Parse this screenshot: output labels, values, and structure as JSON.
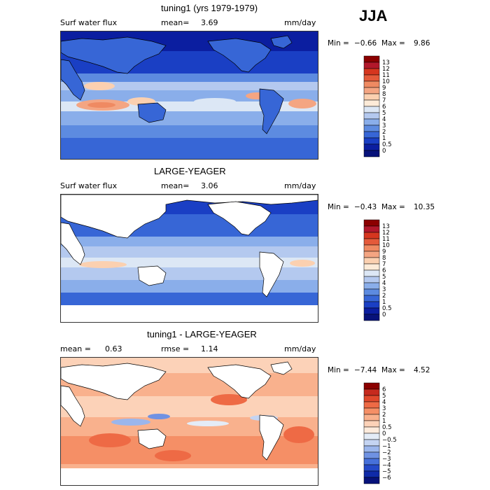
{
  "season": "JJA",
  "panels": [
    {
      "title": "tuning1 (yrs 1979-1979)",
      "left_label": "Surf water flux",
      "stat_label": "mean=",
      "stat_value": "3.69",
      "second_label": "",
      "second_value": "",
      "units": "mm/day",
      "min_label": "Min =",
      "min_value": "−0.66",
      "max_label": "Max =",
      "max_value": "9.86",
      "land_masked": false
    },
    {
      "title": "LARGE-YEAGER",
      "left_label": "Surf water flux",
      "stat_label": "mean=",
      "stat_value": "3.06",
      "second_label": "",
      "second_value": "",
      "units": "mm/day",
      "min_label": "Min =",
      "min_value": "−0.43",
      "max_label": "Max =",
      "max_value": "10.35",
      "land_masked": true
    },
    {
      "title": "tuning1 - LARGE-YEAGER",
      "left_label": "mean =",
      "stat_label": "",
      "stat_value": "0.63",
      "second_label": "rmse =",
      "second_value": "1.14",
      "units": "mm/day",
      "min_label": "Min =",
      "min_value": "−7.44",
      "max_label": "Max =",
      "max_value": "4.52",
      "land_masked": true
    }
  ],
  "colorbars": [
    {
      "labels": [
        "13",
        "12",
        "11",
        "10",
        "9",
        "8",
        "7",
        "6",
        "5",
        "4",
        "3",
        "2",
        "1",
        "0.5",
        "0"
      ],
      "colors": [
        "#8b0000",
        "#b2182b",
        "#d6361f",
        "#e45a3a",
        "#ef8a62",
        "#f4a582",
        "#fbd0b0",
        "#fdebd8",
        "#dce7f5",
        "#b4c9ef",
        "#8aaeea",
        "#5d8be0",
        "#3766d6",
        "#1a3fc4",
        "#0b1ea0",
        "#07127a"
      ]
    },
    {
      "labels": [
        "13",
        "12",
        "11",
        "10",
        "9",
        "8",
        "7",
        "6",
        "5",
        "4",
        "3",
        "2",
        "1",
        "0.5",
        "0"
      ],
      "colors": [
        "#8b0000",
        "#b2182b",
        "#d6361f",
        "#e45a3a",
        "#ef8a62",
        "#f4a582",
        "#fbd0b0",
        "#fdebd8",
        "#dce7f5",
        "#b4c9ef",
        "#8aaeea",
        "#5d8be0",
        "#3766d6",
        "#1a3fc4",
        "#0b1ea0",
        "#07127a"
      ]
    },
    {
      "labels": [
        "6",
        "5",
        "4",
        "3",
        "2",
        "1",
        "0.5",
        "0",
        "−0.5",
        "−1",
        "−2",
        "−3",
        "−4",
        "−5",
        "−6"
      ],
      "colors": [
        "#8b0000",
        "#c62a1e",
        "#e0482c",
        "#ee6a45",
        "#f58f66",
        "#f9b18d",
        "#fcd2b8",
        "#fdebdc",
        "#e4ecf7",
        "#c4d4f2",
        "#9bb6ec",
        "#6f92e3",
        "#4670da",
        "#2449c8",
        "#0f2aa8",
        "#07127a"
      ]
    }
  ],
  "chart_data": [
    {
      "type": "heatmap",
      "title": "tuning1 (yrs 1979-1979)",
      "variable": "Surf water flux",
      "units": "mm/day",
      "season": "JJA",
      "mean": 3.69,
      "min": -0.66,
      "max": 9.86,
      "contour_levels": [
        0,
        0.5,
        1,
        2,
        3,
        4,
        5,
        6,
        7,
        8,
        9,
        10,
        11,
        12,
        13
      ]
    },
    {
      "type": "heatmap",
      "title": "LARGE-YEAGER",
      "variable": "Surf water flux",
      "units": "mm/day",
      "season": "JJA",
      "mean": 3.06,
      "min": -0.43,
      "max": 10.35,
      "contour_levels": [
        0,
        0.5,
        1,
        2,
        3,
        4,
        5,
        6,
        7,
        8,
        9,
        10,
        11,
        12,
        13
      ]
    },
    {
      "type": "heatmap",
      "title": "tuning1 - LARGE-YEAGER",
      "units": "mm/day",
      "season": "JJA",
      "mean": 0.63,
      "rmse": 1.14,
      "min": -7.44,
      "max": 4.52,
      "contour_levels": [
        -6,
        -5,
        -4,
        -3,
        -2,
        -1,
        -0.5,
        0,
        0.5,
        1,
        2,
        3,
        4,
        5,
        6
      ]
    }
  ]
}
